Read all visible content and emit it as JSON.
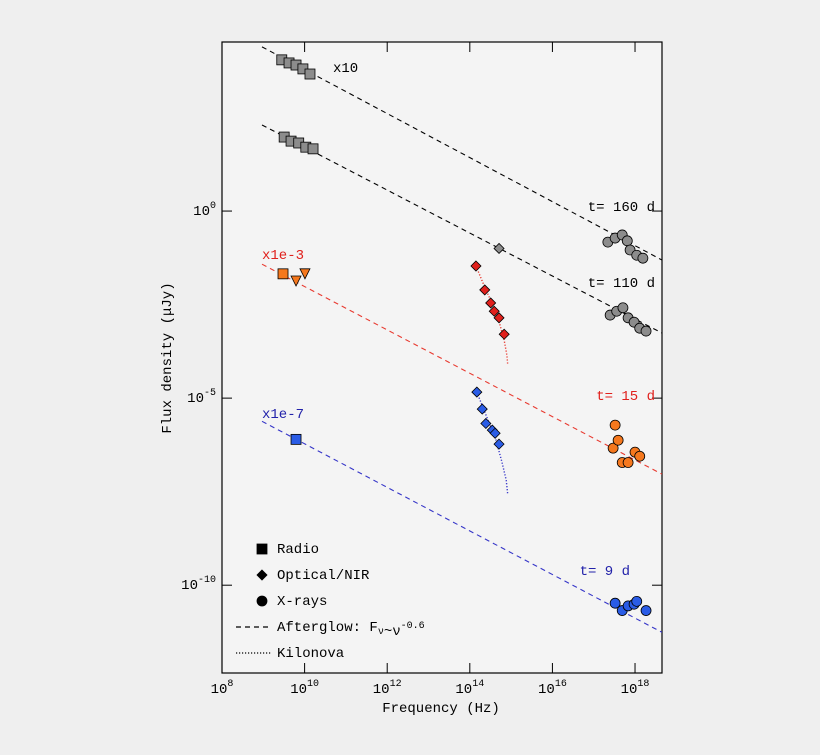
{
  "chart_data": {
    "type": "scatter",
    "xlabel": "Frequency (Hz)",
    "ylabel": "Flux density (μJy)",
    "xscale": "log",
    "yscale": "log",
    "xlim": [
      100000000.0,
      4.5e+18
    ],
    "ylim": [
      33000.0,
      4.5e-13
    ],
    "xticks": [
      {
        "value": 100000000.0,
        "label": "10^8"
      },
      {
        "value": 10000000000.0,
        "label": "10^10"
      },
      {
        "value": 1000000000000.0,
        "label": "10^12"
      },
      {
        "value": 100000000000000.0,
        "label": "10^14"
      },
      {
        "value": 1e+16,
        "label": "10^16"
      },
      {
        "value": 1e+18,
        "label": "10^18"
      }
    ],
    "yticks": [
      {
        "value": 1,
        "label": "10^0"
      },
      {
        "value": 1e-05,
        "label": "10^-5"
      },
      {
        "value": 1e-10,
        "label": "10^-10"
      }
    ],
    "groups": [
      {
        "labels": [
          "x10",
          "t= 160 d"
        ],
        "color": "#8c8c8c",
        "line_color": "#000000",
        "label_color": "#000000",
        "radio": {
          "x": [
            2800000000.0,
            4200000000.0,
            6200000000.0,
            9100000000.0,
            13500000000.0
          ],
          "y": [
            11000.0,
            9100.0,
            8000.0,
            6300.0,
            4600.0
          ]
        },
        "xray": {
          "x": [
            2.2e+17,
            3.3e+17,
            4.9e+17,
            6.5e+17,
            7.6e+17,
            1.1e+18,
            1.55e+18
          ],
          "y": [
            0.148,
            0.19,
            0.23,
            0.16,
            0.091,
            0.066,
            0.055
          ]
        },
        "afterglow": {
          "x": [
            930000000.0,
            4.5e+18
          ],
          "y": [
            24500.0,
            0.049
          ]
        }
      },
      {
        "labels": [
          "t= 110 d"
        ],
        "color": "#8c8c8c",
        "line_color": "#000000",
        "label_color": "#000000",
        "radio": {
          "x": [
            3200000000.0,
            4700000000.0,
            7200000000.0,
            10700000000.0,
            16000000000.0
          ],
          "y": [
            95,
            74,
            66,
            51,
            46
          ]
        },
        "optical": {
          "x": [
            510000000000000.0
          ],
          "y": [
            0.1
          ]
        },
        "xray": {
          "x": [
            2.5e+17,
            3.6e+17,
            5.1e+17,
            6.8e+17,
            9.5e+17,
            1.3e+18,
            1.85e+18
          ],
          "y": [
            0.00166,
            0.0021,
            0.0026,
            0.0014,
            0.00107,
            0.00074,
            0.00062
          ]
        },
        "afterglow": {
          "x": [
            930000000.0,
            4.5e+18
          ],
          "y": [
            200,
            0.00055
          ]
        }
      },
      {
        "labels": [
          "x1e-3",
          "t= 15 d"
        ],
        "color": "#f5781e",
        "optical_color": "#e0201c",
        "line_color": "#e83a30",
        "label_color": "#e0201c",
        "radio": {
          "x": [
            3000000000.0
          ],
          "y": [
            0.021
          ]
        },
        "limits": {
          "x": [
            6200000000.0,
            10200000000.0
          ],
          "y": [
            0.0135,
            0.021
          ]
        },
        "optical": {
          "x": [
            141000000000000.0,
            230000000000000.0,
            320000000000000.0,
            390000000000000.0,
            510000000000000.0,
            680000000000000.0
          ],
          "y": [
            0.034,
            0.0078,
            0.0035,
            0.0021,
            0.0014,
            0.00051
          ]
        },
        "kilonova": {
          "x": [
            141000000000000.0,
            245000000000000.0,
            390000000000000.0,
            540000000000000.0,
            680000000000000.0,
            790000000000000.0,
            830000000000000.0
          ],
          "y": [
            0.034,
            0.0078,
            0.0026,
            0.00089,
            0.00035,
            0.00014,
            7.6e-05
          ]
        },
        "xray": {
          "x": [
            2.95e+17,
            3.3e+17,
            3.9e+17,
            4.9e+17,
            6.8e+17,
            1e+18,
            1.3e+18
          ],
          "y": [
            4.6e-07,
            1.9e-06,
            7.5e-07,
            1.9e-07,
            1.9e-07,
            3.6e-07,
            2.8e-07
          ]
        },
        "afterglow": {
          "x": [
            930000000.0,
            4.5e+18
          ],
          "y": [
            0.038,
            9.3e-08
          ]
        }
      },
      {
        "labels": [
          "x1e-7",
          "t= 9 d"
        ],
        "color": "#2a5ce6",
        "line_color": "#3535c8",
        "label_color": "#2222aa",
        "radio": {
          "x": [
            6200000000.0
          ],
          "y": [
            7.9e-07
          ]
        },
        "optical": {
          "x": [
            148000000000000.0,
            200000000000000.0,
            245000000000000.0,
            350000000000000.0,
            410000000000000.0,
            510000000000000.0
          ],
          "y": [
            1.45e-05,
            5.1e-06,
            2.1e-06,
            1.4e-06,
            1.15e-06,
            5.9e-07
          ]
        },
        "kilonova": {
          "x": [
            148000000000000.0,
            275000000000000.0,
            430000000000000.0,
            600000000000000.0,
            760000000000000.0,
            830000000000000.0
          ],
          "y": [
            1.45e-05,
            2.6e-06,
            7.6e-07,
            1.95e-07,
            6.5e-08,
            2.6e-08
          ]
        },
        "xray": {
          "x": [
            3.3e+17,
            4.9e+17,
            6.8e+17,
            9.5e+17,
            1.1e+18,
            1.85e+18
          ],
          "y": [
            3.3e-11,
            2.1e-11,
            2.8e-11,
            3.1e-11,
            3.7e-11,
            2.1e-11
          ]
        },
        "afterglow": {
          "x": [
            930000000.0,
            4.5e+18
          ],
          "y": [
            2.4e-06,
            5.5e-12
          ]
        }
      }
    ],
    "legend": [
      {
        "label": "Radio",
        "marker": "square"
      },
      {
        "label": "Optical/NIR",
        "marker": "diamond"
      },
      {
        "label": "X-rays",
        "marker": "circle"
      },
      {
        "label": "Afterglow: F_ν~ν^-0.6",
        "line": "dashed"
      },
      {
        "label": "Kilonova",
        "line": "dotted"
      }
    ]
  }
}
